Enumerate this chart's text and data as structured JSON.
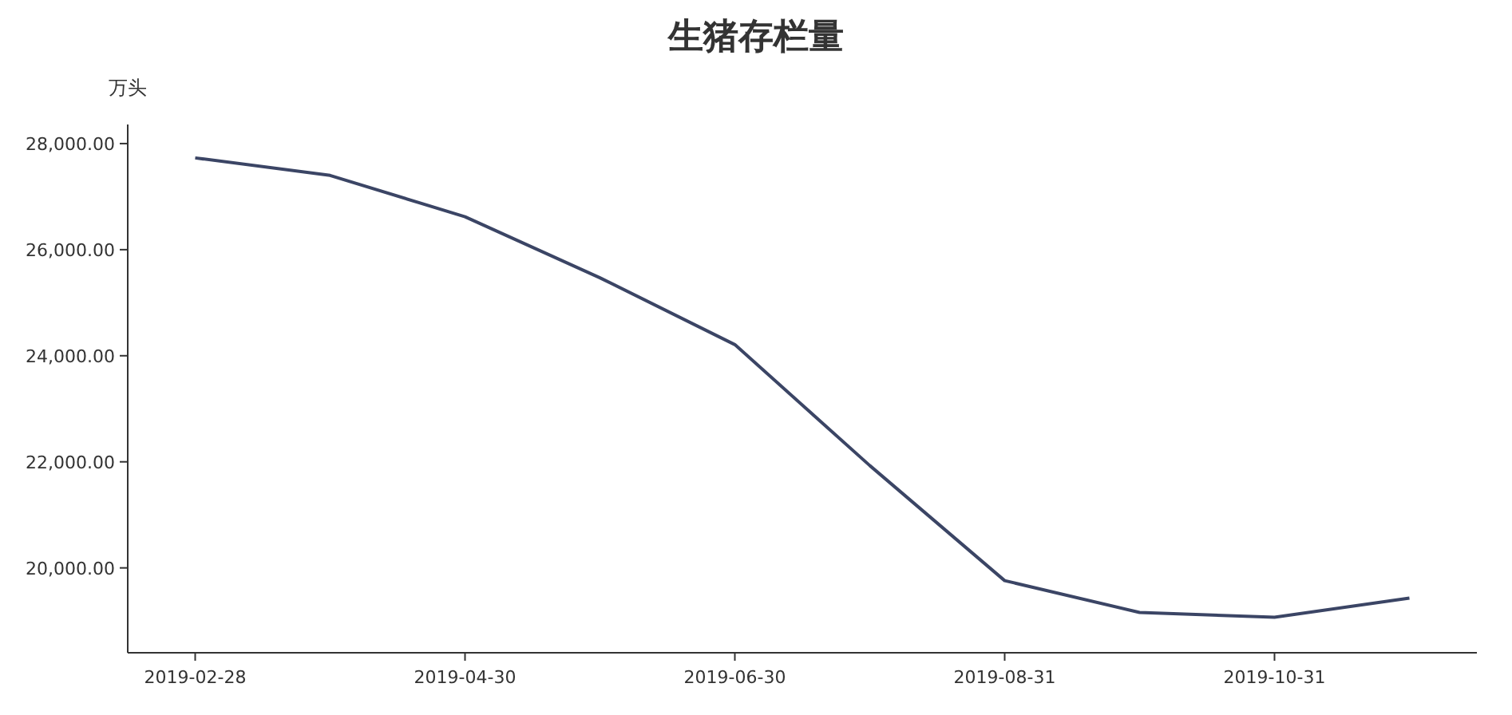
{
  "chart_data": {
    "type": "line",
    "title": "生猪存栏量",
    "ylabel": "万头",
    "categories": [
      "2019-02-28",
      null,
      "2019-04-30",
      null,
      "2019-06-30",
      null,
      "2019-08-31",
      null,
      "2019-10-31",
      null
    ],
    "series": [
      {
        "color": "#3b4565",
        "values": [
          27730,
          27400,
          26620,
          25470,
          24210,
          21930,
          19760,
          19160,
          19070,
          19430
        ]
      }
    ],
    "ylim": [
      18400,
      28360
    ],
    "yticks": [
      {
        "value": 20000,
        "label": "20,000.00"
      },
      {
        "value": 22000,
        "label": "22,000.00"
      },
      {
        "value": 24000,
        "label": "24,000.00"
      },
      {
        "value": 26000,
        "label": "26,000.00"
      },
      {
        "value": 28000,
        "label": "28,000.00"
      }
    ],
    "grid": false,
    "marker": "none",
    "line_style": "solid"
  }
}
